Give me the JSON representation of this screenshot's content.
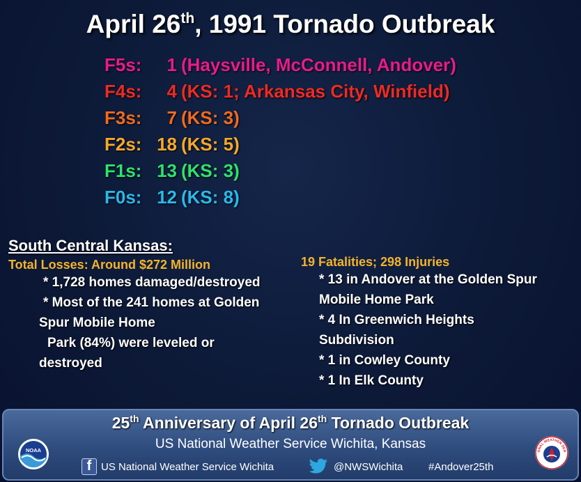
{
  "title": {
    "pre": "April 26",
    "sup": "th",
    "post": ", 1991 Tornado Outbreak"
  },
  "ratings": [
    {
      "label": "F5s:",
      "count": "1",
      "detail": "(Haysville, McConnell, Andover)",
      "color": "#e81b8c"
    },
    {
      "label": "F4s:",
      "count": "4",
      "detail": "(KS: 1; Arkansas City, Winfield)",
      "color": "#ee2a24"
    },
    {
      "label": "F3s:",
      "count": "7",
      "detail": "(KS: 3)",
      "color": "#f26a1e"
    },
    {
      "label": "F2s:",
      "count": "18",
      "detail": "(KS: 5)",
      "color": "#f7a929"
    },
    {
      "label": "F1s:",
      "count": "13",
      "detail": "(KS: 3)",
      "color": "#2ee36c"
    },
    {
      "label": "F0s:",
      "count": "12",
      "detail": "(KS: 8)",
      "color": "#29b9ea"
    }
  ],
  "south_central": {
    "heading": "South Central Kansas:",
    "losses": "Total Losses: Around $272 Million",
    "items": [
      "* 1,728 homes damaged/destroyed",
      "* Most of the 241 homes at Golden",
      "Spur Mobile Home",
      "Park (84%) were leveled or",
      "destroyed"
    ]
  },
  "casualties": {
    "heading": "19 Fatalities; 298 Injuries",
    "items": [
      "* 13 in Andover at the Golden Spur",
      "Mobile Home Park",
      "* 4 In Greenwich Heights",
      "Subdivision",
      "* 1 in Cowley County",
      "* 1 In Elk County"
    ]
  },
  "footer": {
    "title_a": "25",
    "title_a_sup": "th",
    "title_b": " Anniversary of April 26",
    "title_b_sup": "th",
    "title_c": " Tornado Outbreak",
    "subtitle": "US National Weather Service Wichita, Kansas",
    "facebook": "US National Weather Service Wichita",
    "twitter": "@NWSWichita",
    "hashtag": "#Andover25th",
    "noaa_logo_text": "NOAA",
    "nws_logo_text": "NATIONAL WEATHER SERVICE"
  },
  "colors": {
    "background": "#0c1937",
    "gold": "#f4b42a",
    "footer": "#2f4c7e"
  }
}
